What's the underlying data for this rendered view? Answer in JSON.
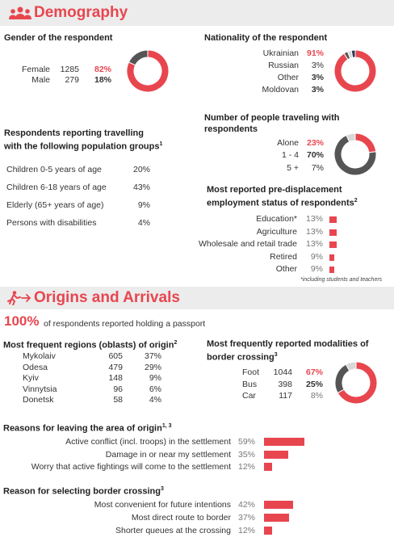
{
  "colors": {
    "accent": "#e8464f",
    "dark": "#555555",
    "light": "#d8d8d8",
    "header_bg": "#ececec"
  },
  "demography": {
    "title": "Demography",
    "gender": {
      "heading": "Gender of the respondent",
      "rows": [
        {
          "label": "Female",
          "count": "1285",
          "pct": "82%"
        },
        {
          "label": "Male",
          "count": "279",
          "pct": "18%"
        }
      ],
      "chart": [
        0.82,
        0.18
      ]
    },
    "nationality": {
      "heading": "Nationality of the respondent",
      "rows": [
        {
          "label": "Ukrainian",
          "pct": "91%"
        },
        {
          "label": "Russian",
          "pct": "3%"
        },
        {
          "label": "Other",
          "pct": "3%"
        },
        {
          "label": "Moldovan",
          "pct": "3%"
        }
      ],
      "chart": [
        0.91,
        0.03,
        0.03,
        0.03
      ]
    },
    "groups": {
      "heading_line1": "Respondents reporting travelling",
      "heading_line2": "with the following population groups",
      "sup": "1",
      "rows": [
        {
          "label": "Children 0-5 years of age",
          "pct": "20%"
        },
        {
          "label": "Children 6-18 years of age",
          "pct": "43%"
        },
        {
          "label": "Elderly (65+ years of age)",
          "pct": "9%"
        },
        {
          "label": "Persons with disabilities",
          "pct": "4%"
        }
      ]
    },
    "traveling": {
      "heading_line1": "Number of people traveling with",
      "heading_line2": "respondents",
      "rows": [
        {
          "label": "Alone",
          "pct": "23%"
        },
        {
          "label": "1 - 4",
          "pct": "70%"
        },
        {
          "label": "5 +",
          "pct": "7%"
        }
      ],
      "chart": [
        0.23,
        0.7,
        0.07
      ]
    },
    "employment": {
      "heading_line1": "Most reported pre-displacement",
      "heading_line2": "employment status of respondents",
      "sup": "2",
      "rows": [
        {
          "label": "Education*",
          "pct": "13%"
        },
        {
          "label": "Agriculture",
          "pct": "13%"
        },
        {
          "label": "Wholesale and retail trade",
          "pct": "13%"
        },
        {
          "label": "Retired",
          "pct": "9%"
        },
        {
          "label": "Other",
          "pct": "9%"
        }
      ],
      "values": [
        13,
        13,
        13,
        9,
        9
      ],
      "footnote": "*including students and teachers"
    }
  },
  "origins": {
    "title": "Origins and Arrivals",
    "passport_pct": "100%",
    "passport_text": "of respondents reported holding a passport",
    "regions": {
      "heading": "Most frequent regions (oblasts) of origin",
      "sup": "2",
      "rows": [
        {
          "label": "Mykolaiv",
          "count": "605",
          "pct": "37%"
        },
        {
          "label": "Odesa",
          "count": "479",
          "pct": "29%"
        },
        {
          "label": "Kyiv",
          "count": "148",
          "pct": "9%"
        },
        {
          "label": "Vinnytsia",
          "count": "96",
          "pct": "6%"
        },
        {
          "label": "Donetsk",
          "count": "58",
          "pct": "4%"
        }
      ]
    },
    "modalities": {
      "heading_line1": "Most frequently reported modalities of",
      "heading_line2": "border crossing",
      "sup": "3",
      "rows": [
        {
          "label": "Foot",
          "count": "1044",
          "pct": "67%"
        },
        {
          "label": "Bus",
          "count": "398",
          "pct": "25%"
        },
        {
          "label": "Car",
          "count": "117",
          "pct": "8%"
        }
      ],
      "chart": [
        0.67,
        0.25,
        0.08
      ]
    },
    "reasons_leaving": {
      "heading": "Reasons for leaving the area of origin",
      "sup": "1, 3",
      "rows": [
        {
          "label": "Active conflict (incl. troops) in the settlement",
          "pct": "59%"
        },
        {
          "label": "Damage in or near my settlement",
          "pct": "35%"
        },
        {
          "label": "Worry that active fightings will come to the settlement",
          "pct": "12%"
        }
      ],
      "values": [
        59,
        35,
        12
      ]
    },
    "reasons_crossing": {
      "heading": "Reason for selecting border crossing",
      "sup": "3",
      "rows": [
        {
          "label": "Most convenient for future intentions",
          "pct": "42%"
        },
        {
          "label": "Most direct route to border",
          "pct": "37%"
        },
        {
          "label": "Shorter queues at the crossing",
          "pct": "12%"
        }
      ],
      "values": [
        42,
        37,
        12
      ]
    }
  }
}
